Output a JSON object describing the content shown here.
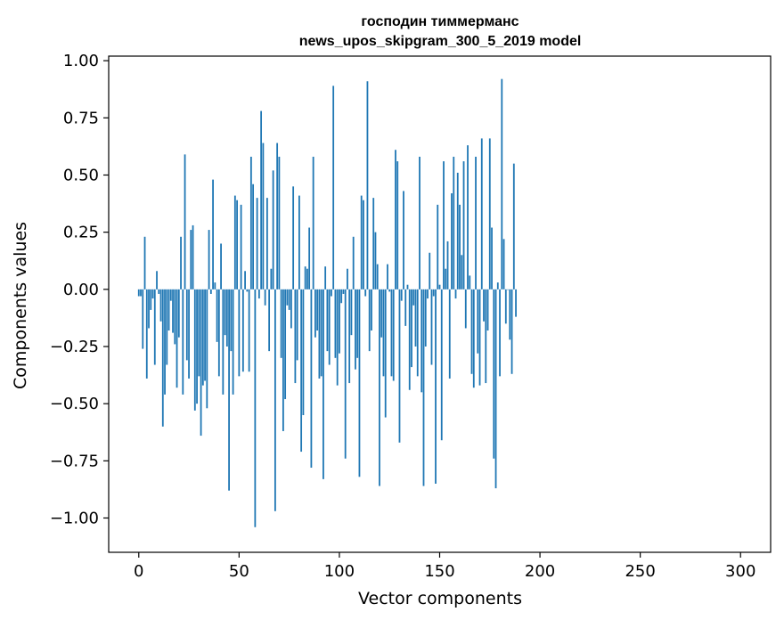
{
  "chart_data": {
    "type": "bar",
    "title_line1": "господин тиммерманс",
    "title_line2": "news_upos_skipgram_300_5_2019 model",
    "xlabel": "Vector components",
    "ylabel": "Components values",
    "xlim": [
      -15,
      315
    ],
    "ylim": [
      -1.15,
      1.02
    ],
    "xticks": [
      0,
      50,
      100,
      150,
      200,
      250,
      300
    ],
    "xtick_labels": [
      "0",
      "50",
      "100",
      "150",
      "200",
      "250",
      "300"
    ],
    "yticks": [
      -1.0,
      -0.75,
      -0.5,
      -0.25,
      0.0,
      0.25,
      0.5,
      0.75,
      1.0
    ],
    "ytick_labels": [
      "−1.00",
      "−0.75",
      "−0.50",
      "−0.25",
      "0.00",
      "0.25",
      "0.50",
      "0.75",
      "1.00"
    ],
    "bar_color": "#1f77b4",
    "grid": false,
    "values": [
      -0.03,
      -0.03,
      -0.26,
      0.23,
      -0.39,
      -0.17,
      -0.09,
      -0.04,
      -0.33,
      0.08,
      -0.02,
      -0.14,
      -0.6,
      -0.46,
      -0.33,
      -0.18,
      -0.05,
      -0.19,
      -0.24,
      -0.43,
      -0.21,
      0.23,
      -0.46,
      0.59,
      -0.31,
      -0.39,
      0.26,
      0.28,
      -0.53,
      -0.5,
      -0.38,
      -0.64,
      -0.42,
      -0.4,
      -0.52,
      0.26,
      -0.02,
      0.48,
      0.03,
      -0.23,
      -0.38,
      0.2,
      -0.46,
      -0.2,
      -0.25,
      -0.88,
      -0.27,
      -0.46,
      0.41,
      0.39,
      -0.38,
      0.37,
      -0.36,
      0.08,
      -0.01,
      -0.36,
      0.58,
      0.46,
      -1.04,
      0.4,
      -0.04,
      0.78,
      0.64,
      -0.07,
      0.4,
      -0.27,
      0.09,
      0.52,
      -0.97,
      0.64,
      0.58,
      -0.3,
      -0.62,
      -0.48,
      -0.07,
      -0.09,
      -0.17,
      0.45,
      -0.41,
      -0.31,
      0.41,
      -0.71,
      -0.55,
      0.1,
      0.09,
      0.27,
      -0.78,
      0.58,
      -0.21,
      -0.18,
      -0.39,
      -0.38,
      -0.83,
      0.1,
      -0.27,
      -0.33,
      -0.03,
      0.89,
      -0.3,
      -0.42,
      -0.28,
      -0.06,
      -0.02,
      -0.74,
      0.09,
      -0.41,
      -0.2,
      0.23,
      -0.35,
      -0.3,
      -0.82,
      0.41,
      0.39,
      -0.03,
      0.91,
      -0.27,
      -0.18,
      0.4,
      0.25,
      0.11,
      -0.86,
      -0.21,
      -0.38,
      -0.56,
      0.11,
      -0.01,
      -0.38,
      -0.4,
      0.61,
      0.56,
      -0.67,
      -0.05,
      0.43,
      -0.16,
      0.02,
      -0.44,
      -0.34,
      -0.07,
      -0.25,
      -0.38,
      0.58,
      -0.45,
      -0.86,
      -0.25,
      -0.04,
      0.16,
      -0.33,
      -0.03,
      -0.85,
      0.37,
      0.02,
      -0.66,
      0.56,
      0.09,
      0.21,
      -0.39,
      0.42,
      0.58,
      -0.04,
      0.51,
      0.37,
      0.15,
      0.56,
      -0.17,
      0.63,
      0.06,
      -0.37,
      -0.43,
      0.58,
      -0.28,
      -0.42,
      0.66,
      -0.14,
      -0.41,
      -0.18,
      0.66,
      0.27,
      -0.74,
      -0.87,
      0.03,
      -0.38,
      0.92,
      0.22,
      -0.15,
      0.0,
      -0.22,
      -0.37,
      0.55,
      -0.12
    ]
  }
}
